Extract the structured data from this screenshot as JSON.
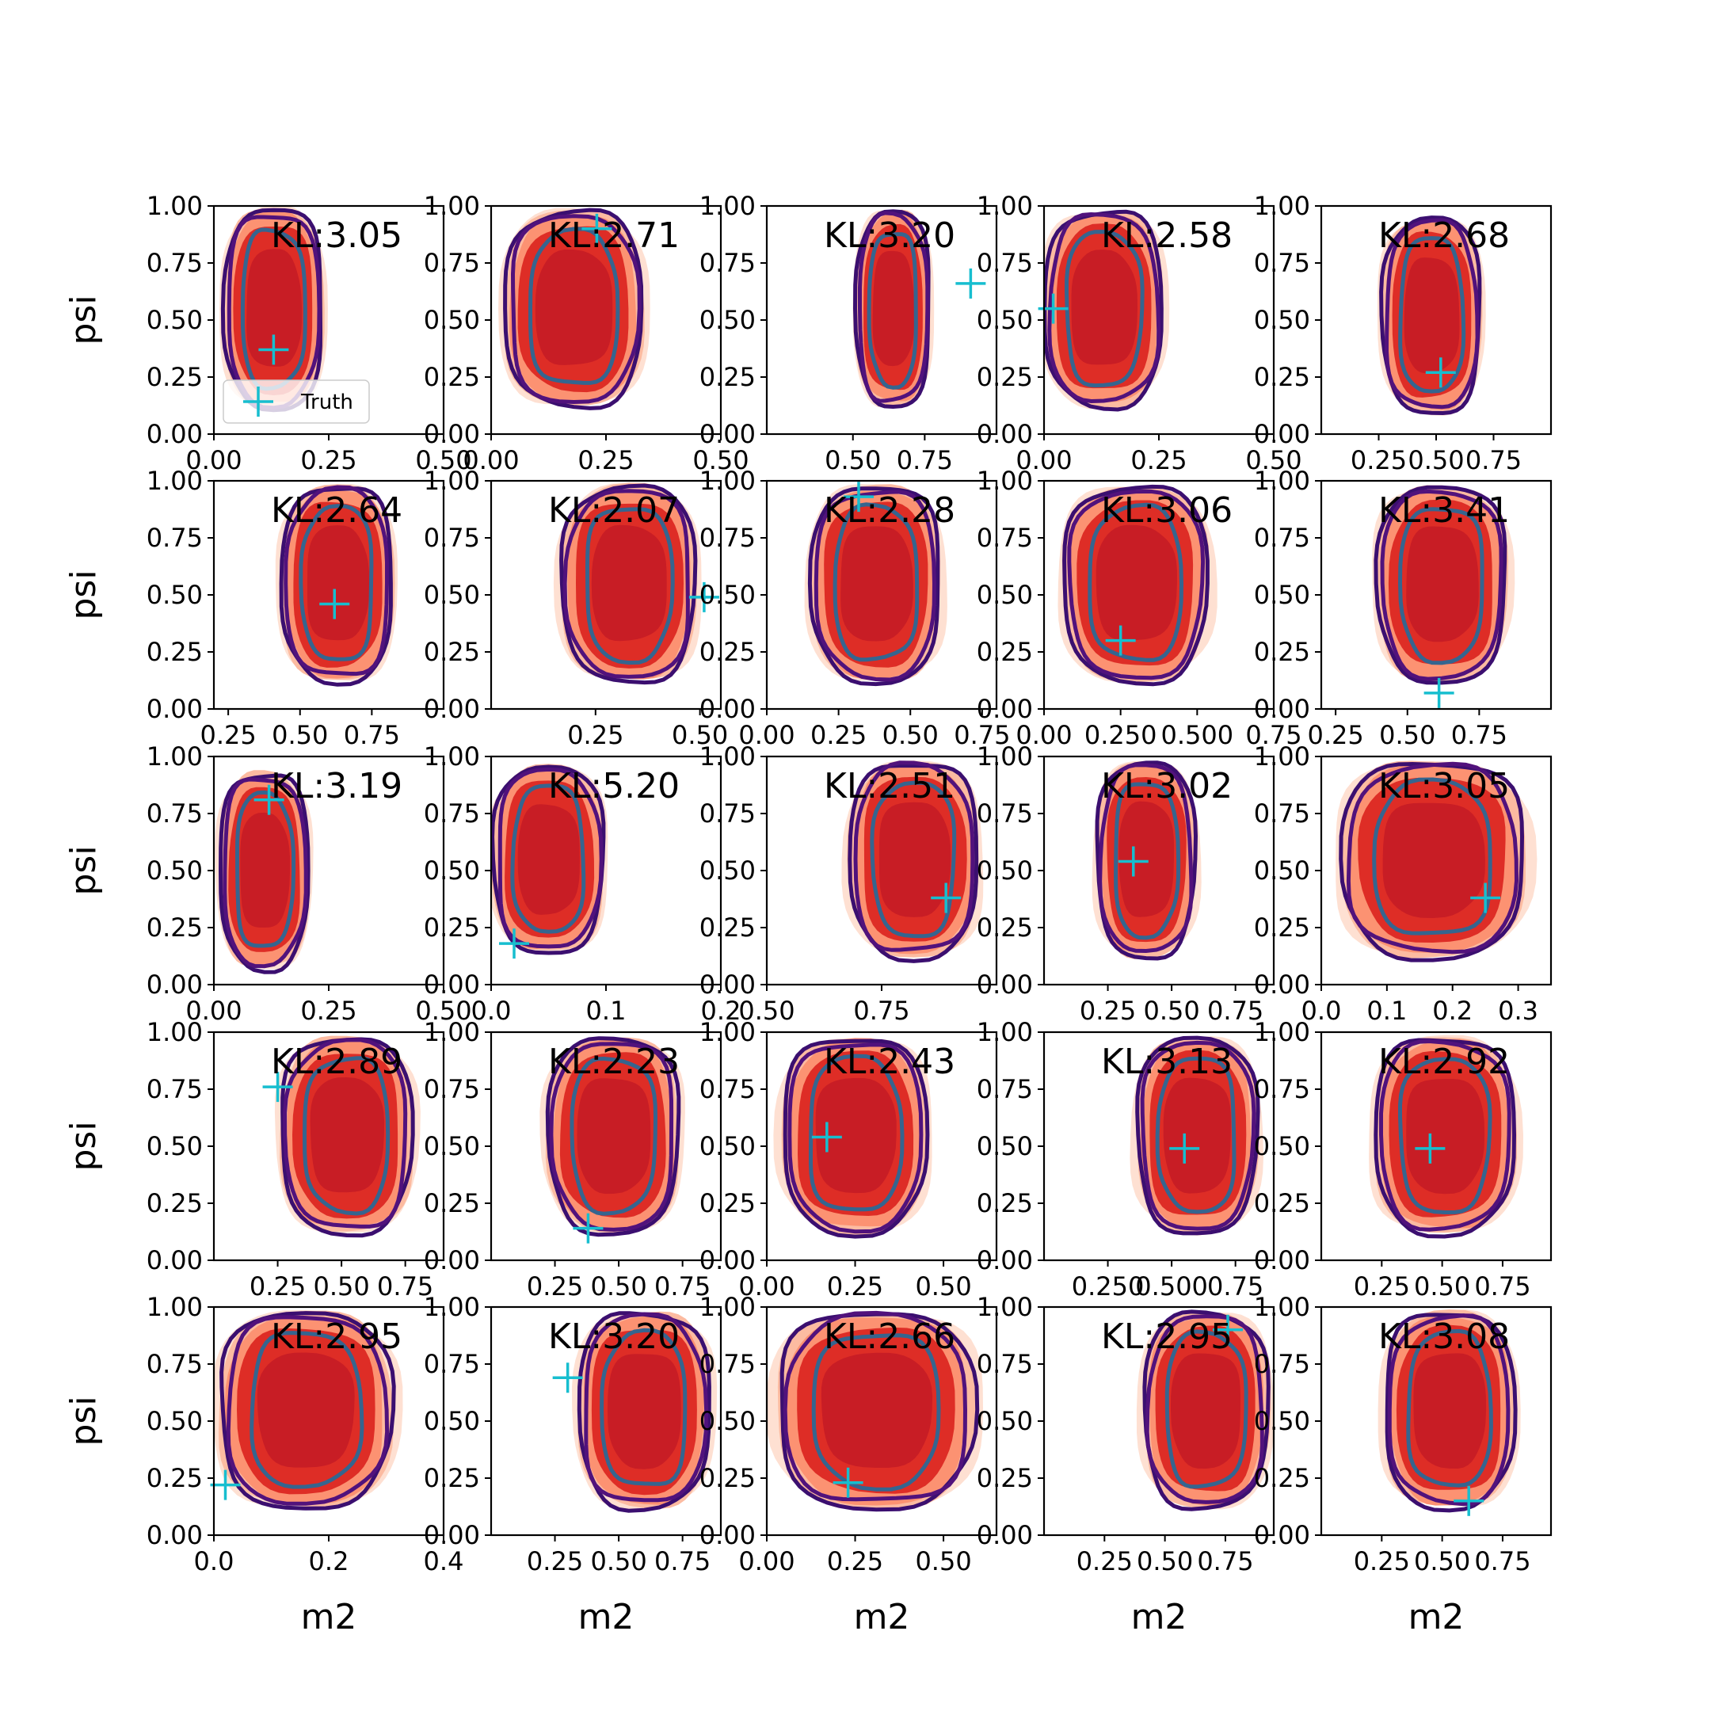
{
  "colors": {
    "red_levels": [
      "#fee0d2",
      "#fcbba1",
      "#fc9272",
      "#de2d26",
      "#c81d25"
    ],
    "outer_contour": "#3b0f70",
    "mid_contour": "#51127c",
    "inner_contour": "#35658f",
    "truth_marker": "#17becf",
    "axis": "#000000"
  },
  "legend": {
    "label": "Truth",
    "marker_icon": "plus-icon"
  },
  "chart_data": {
    "type": "contour-grid",
    "rows": 5,
    "cols": 5,
    "ylabel": "psi",
    "xlabel": "m2",
    "yticks": [
      "0.00",
      "0.25",
      "0.50",
      "0.75",
      "1.00"
    ],
    "ylim": [
      0,
      1
    ],
    "panels": [
      {
        "kl": "KL:3.05",
        "xlim": [
          0,
          0.5
        ],
        "xticks": [
          0,
          0.25,
          0.5
        ],
        "xtick_labels": [
          "0.00",
          "0.25",
          "0.50"
        ],
        "truth": [
          0.13,
          0.37
        ],
        "center": [
          0.13,
          0.55
        ],
        "spread": [
          0.1,
          0.43
        ],
        "legend": true
      },
      {
        "kl": "KL:2.71",
        "xlim": [
          0,
          0.5
        ],
        "xticks": [
          0,
          0.25,
          0.5
        ],
        "xtick_labels": [
          "0.00",
          "0.25",
          "0.50"
        ],
        "truth": [
          0.23,
          0.9
        ],
        "center": [
          0.18,
          0.55
        ],
        "spread": [
          0.14,
          0.42
        ]
      },
      {
        "kl": "KL:3.20",
        "xlim": [
          0.2,
          1
        ],
        "xticks": [
          0.5,
          0.75
        ],
        "xtick_labels": [
          "0.50",
          "0.75"
        ],
        "truth": [
          0.91,
          0.66
        ],
        "center": [
          0.64,
          0.55
        ],
        "spread": [
          0.12,
          0.42
        ]
      },
      {
        "kl": "KL:2.58",
        "xlim": [
          0,
          0.5
        ],
        "xticks": [
          0,
          0.25,
          0.5
        ],
        "xtick_labels": [
          "0.00",
          "0.25",
          "0.50"
        ],
        "truth": [
          0.02,
          0.55
        ],
        "center": [
          0.13,
          0.55
        ],
        "spread": [
          0.12,
          0.42
        ]
      },
      {
        "kl": "KL:2.68",
        "xlim": [
          0,
          1
        ],
        "xticks": [
          0.25,
          0.5,
          0.75
        ],
        "xtick_labels": [
          "0.25",
          "0.50",
          "0.75"
        ],
        "truth": [
          0.52,
          0.27
        ],
        "center": [
          0.48,
          0.52
        ],
        "spread": [
          0.2,
          0.42
        ]
      },
      {
        "kl": "KL:2.64",
        "xlim": [
          0.2,
          1
        ],
        "xticks": [
          0.25,
          0.5,
          0.75
        ],
        "xtick_labels": [
          "0.25",
          "0.50",
          "0.75"
        ],
        "truth": [
          0.62,
          0.46
        ],
        "center": [
          0.63,
          0.55
        ],
        "spread": [
          0.18,
          0.42
        ]
      },
      {
        "kl": "KL:2.07",
        "xlim": [
          0,
          0.55
        ],
        "xticks": [
          0.25,
          0.5
        ],
        "xtick_labels": [
          "0.25",
          "0.50"
        ],
        "truth": [
          0.51,
          0.49
        ],
        "center": [
          0.33,
          0.55
        ],
        "spread": [
          0.15,
          0.42
        ]
      },
      {
        "kl": "KL:2.28",
        "xlim": [
          0,
          0.8
        ],
        "xticks": [
          0,
          0.25,
          0.5,
          0.75
        ],
        "xtick_labels": [
          "0.00",
          "0.25",
          "0.50",
          "0.75"
        ],
        "truth": [
          0.32,
          0.93
        ],
        "center": [
          0.38,
          0.55
        ],
        "spread": [
          0.21,
          0.42
        ]
      },
      {
        "kl": "KL:3.06",
        "xlim": [
          0,
          0.75
        ],
        "xticks": [
          0,
          0.25,
          0.5,
          0.75
        ],
        "xtick_labels": [
          "0.00",
          "0.250",
          "0.500",
          "0.75"
        ],
        "truth": [
          0.25,
          0.3
        ],
        "center": [
          0.3,
          0.55
        ],
        "spread": [
          0.22,
          0.42
        ]
      },
      {
        "kl": "KL:3.41",
        "xlim": [
          0.2,
          1
        ],
        "xticks": [
          0.25,
          0.5,
          0.75
        ],
        "xtick_labels": [
          "0.25",
          "0.50",
          "0.75"
        ],
        "truth": [
          0.61,
          0.07
        ],
        "center": [
          0.62,
          0.55
        ],
        "spread": [
          0.21,
          0.42
        ]
      },
      {
        "kl": "KL:3.19",
        "xlim": [
          0,
          0.5
        ],
        "xticks": [
          0,
          0.25,
          0.5
        ],
        "xtick_labels": [
          "0.00",
          "0.25",
          "0.50"
        ],
        "truth": [
          0.12,
          0.81
        ],
        "center": [
          0.11,
          0.5
        ],
        "spread": [
          0.09,
          0.42
        ]
      },
      {
        "kl": "KL:5.20",
        "xlim": [
          0,
          0.2
        ],
        "xticks": [
          0,
          0.1,
          0.2
        ],
        "xtick_labels": [
          "0.0",
          "0.1",
          "0.2"
        ],
        "truth": [
          0.02,
          0.18
        ],
        "center": [
          0.05,
          0.55
        ],
        "spread": [
          0.045,
          0.4
        ]
      },
      {
        "kl": "KL:2.51",
        "xlim": [
          0.5,
          1
        ],
        "xticks": [
          0.5,
          0.75
        ],
        "xtick_labels": [
          "0.50",
          "0.75"
        ],
        "truth": [
          0.89,
          0.38
        ],
        "center": [
          0.82,
          0.55
        ],
        "spread": [
          0.13,
          0.42
        ]
      },
      {
        "kl": "KL:3.02",
        "xlim": [
          0,
          0.9
        ],
        "xticks": [
          0.25,
          0.5,
          0.75
        ],
        "xtick_labels": [
          "0.25",
          "0.50",
          "0.75"
        ],
        "truth": [
          0.35,
          0.54
        ],
        "center": [
          0.4,
          0.55
        ],
        "spread": [
          0.18,
          0.42
        ]
      },
      {
        "kl": "KL:3.05",
        "xlim": [
          0,
          0.35
        ],
        "xticks": [
          0,
          0.1,
          0.2,
          0.3
        ],
        "xtick_labels": [
          "0.0",
          "0.1",
          "0.2",
          "0.3"
        ],
        "truth": [
          0.25,
          0.38
        ],
        "center": [
          0.17,
          0.55
        ],
        "spread": [
          0.13,
          0.42
        ]
      },
      {
        "kl": "KL:2.89",
        "xlim": [
          0,
          0.9
        ],
        "xticks": [
          0.25,
          0.5,
          0.75
        ],
        "xtick_labels": [
          "0.25",
          "0.50",
          "0.75"
        ],
        "truth": [
          0.25,
          0.76
        ],
        "center": [
          0.52,
          0.55
        ],
        "spread": [
          0.24,
          0.42
        ]
      },
      {
        "kl": "KL:2.23",
        "xlim": [
          0,
          0.9
        ],
        "xticks": [
          0.25,
          0.5,
          0.75
        ],
        "xtick_labels": [
          "0.25",
          "0.50",
          "0.75"
        ],
        "truth": [
          0.38,
          0.14
        ],
        "center": [
          0.48,
          0.55
        ],
        "spread": [
          0.24,
          0.42
        ]
      },
      {
        "kl": "KL:2.43",
        "xlim": [
          0,
          0.65
        ],
        "xticks": [
          0,
          0.25,
          0.5
        ],
        "xtick_labels": [
          "0.00",
          "0.25",
          "0.50"
        ],
        "truth": [
          0.17,
          0.54
        ],
        "center": [
          0.25,
          0.55
        ],
        "spread": [
          0.19,
          0.42
        ]
      },
      {
        "kl": "KL:3.13",
        "xlim": [
          0,
          0.9
        ],
        "xticks": [
          0.25,
          0.5,
          0.75
        ],
        "xtick_labels": [
          "0.250",
          "0.500",
          "0.75"
        ],
        "truth": [
          0.55,
          0.49
        ],
        "center": [
          0.6,
          0.55
        ],
        "spread": [
          0.22,
          0.42
        ]
      },
      {
        "kl": "KL:2.92",
        "xlim": [
          0,
          0.95
        ],
        "xticks": [
          0.25,
          0.5,
          0.75
        ],
        "xtick_labels": [
          "0.25",
          "0.50",
          "0.75"
        ],
        "truth": [
          0.45,
          0.49
        ],
        "center": [
          0.51,
          0.55
        ],
        "spread": [
          0.27,
          0.42
        ]
      },
      {
        "kl": "KL:2.95",
        "xlim": [
          0,
          0.4
        ],
        "xticks": [
          0,
          0.2,
          0.4
        ],
        "xtick_labels": [
          "0.0",
          "0.2",
          "0.4"
        ],
        "truth": [
          0.02,
          0.22
        ],
        "center": [
          0.16,
          0.55
        ],
        "spread": [
          0.14,
          0.42
        ]
      },
      {
        "kl": "KL:3.20",
        "xlim": [
          0,
          0.9
        ],
        "xticks": [
          0.25,
          0.5,
          0.75
        ],
        "xtick_labels": [
          "0.25",
          "0.50",
          "0.75"
        ],
        "truth": [
          0.3,
          0.69
        ],
        "center": [
          0.6,
          0.55
        ],
        "spread": [
          0.24,
          0.42
        ]
      },
      {
        "kl": "KL:2.66",
        "xlim": [
          0,
          0.65
        ],
        "xticks": [
          0,
          0.25,
          0.5
        ],
        "xtick_labels": [
          "0.00",
          "0.25",
          "0.50"
        ],
        "truth": [
          0.23,
          0.23
        ],
        "center": [
          0.31,
          0.55
        ],
        "spread": [
          0.26,
          0.42
        ]
      },
      {
        "kl": "KL:2.95",
        "xlim": [
          0,
          0.95
        ],
        "xticks": [
          0.25,
          0.5,
          0.75
        ],
        "xtick_labels": [
          "0.25",
          "0.50",
          "0.75"
        ],
        "truth": [
          0.76,
          0.9
        ],
        "center": [
          0.67,
          0.55
        ],
        "spread": [
          0.24,
          0.42
        ]
      },
      {
        "kl": "KL:3.08",
        "xlim": [
          0,
          0.95
        ],
        "xticks": [
          0.25,
          0.5,
          0.75
        ],
        "xtick_labels": [
          "0.25",
          "0.50",
          "0.75"
        ],
        "truth": [
          0.61,
          0.15
        ],
        "center": [
          0.53,
          0.55
        ],
        "spread": [
          0.25,
          0.42
        ]
      }
    ]
  }
}
